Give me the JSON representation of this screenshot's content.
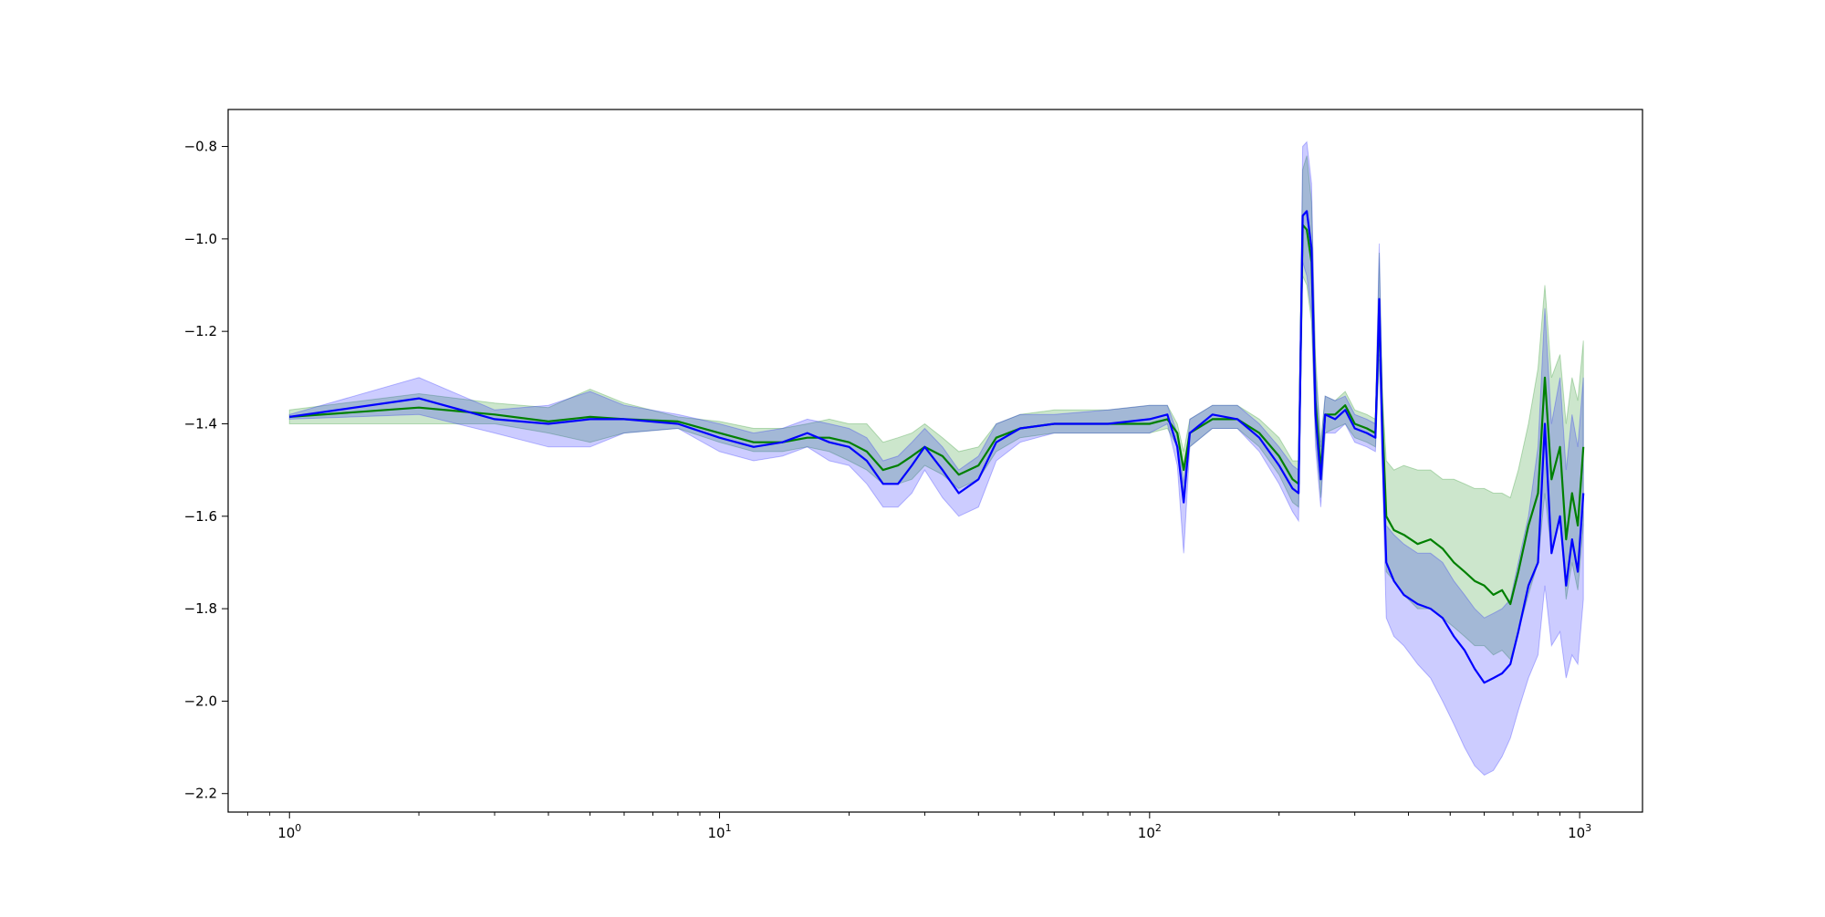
{
  "chart_data": {
    "type": "line",
    "title": "",
    "xlabel": "",
    "ylabel": "",
    "xscale": "log",
    "xlim": [
      0.72,
      1400
    ],
    "ylim": [
      -2.24,
      -0.72
    ],
    "grid": false,
    "legend": "none",
    "x_ticks": [
      {
        "value": 1,
        "base": "10",
        "exp": "0"
      },
      {
        "value": 10,
        "base": "10",
        "exp": "1"
      },
      {
        "value": 100,
        "base": "10",
        "exp": "2"
      },
      {
        "value": 1000,
        "base": "10",
        "exp": "3"
      }
    ],
    "y_ticks": [
      {
        "value": -0.8,
        "label": "−0.8"
      },
      {
        "value": -1.0,
        "label": "−1.0"
      },
      {
        "value": -1.2,
        "label": "−1.2"
      },
      {
        "value": -1.4,
        "label": "−1.4"
      },
      {
        "value": -1.6,
        "label": "−1.6"
      },
      {
        "value": -1.8,
        "label": "−1.8"
      },
      {
        "value": -2.0,
        "label": "−2.0"
      },
      {
        "value": -2.2,
        "label": "−2.2"
      }
    ],
    "series": [
      {
        "color": "#008000",
        "band_color": "#008000",
        "band_opacity": 0.2,
        "points": [
          [
            1,
            -1.385,
            -1.37,
            -1.4
          ],
          [
            2,
            -1.365,
            -1.335,
            -1.4
          ],
          [
            3,
            -1.38,
            -1.355,
            -1.4
          ],
          [
            4,
            -1.395,
            -1.365,
            -1.42
          ],
          [
            5,
            -1.385,
            -1.325,
            -1.44
          ],
          [
            6,
            -1.39,
            -1.355,
            -1.42
          ],
          [
            8,
            -1.395,
            -1.385,
            -1.41
          ],
          [
            10,
            -1.42,
            -1.395,
            -1.44
          ],
          [
            12,
            -1.44,
            -1.41,
            -1.46
          ],
          [
            14,
            -1.44,
            -1.41,
            -1.46
          ],
          [
            16,
            -1.43,
            -1.4,
            -1.45
          ],
          [
            18,
            -1.43,
            -1.39,
            -1.46
          ],
          [
            20,
            -1.44,
            -1.4,
            -1.48
          ],
          [
            22,
            -1.46,
            -1.4,
            -1.5
          ],
          [
            24,
            -1.5,
            -1.44,
            -1.53
          ],
          [
            26,
            -1.49,
            -1.43,
            -1.53
          ],
          [
            28,
            -1.47,
            -1.42,
            -1.52
          ],
          [
            30,
            -1.45,
            -1.4,
            -1.49
          ],
          [
            33,
            -1.47,
            -1.43,
            -1.51
          ],
          [
            36,
            -1.51,
            -1.46,
            -1.54
          ],
          [
            40,
            -1.49,
            -1.45,
            -1.52
          ],
          [
            44,
            -1.43,
            -1.4,
            -1.46
          ],
          [
            50,
            -1.41,
            -1.38,
            -1.43
          ],
          [
            60,
            -1.4,
            -1.37,
            -1.42
          ],
          [
            80,
            -1.4,
            -1.37,
            -1.42
          ],
          [
            100,
            -1.4,
            -1.36,
            -1.42
          ],
          [
            110,
            -1.39,
            -1.36,
            -1.41
          ],
          [
            116,
            -1.42,
            -1.4,
            -1.45
          ],
          [
            120,
            -1.5,
            -1.46,
            -1.55
          ],
          [
            124,
            -1.42,
            -1.39,
            -1.45
          ],
          [
            140,
            -1.39,
            -1.36,
            -1.41
          ],
          [
            160,
            -1.39,
            -1.36,
            -1.41
          ],
          [
            180,
            -1.42,
            -1.39,
            -1.45
          ],
          [
            200,
            -1.47,
            -1.43,
            -1.51
          ],
          [
            215,
            -1.52,
            -1.48,
            -1.57
          ],
          [
            222,
            -1.53,
            -1.48,
            -1.58
          ],
          [
            227,
            -0.97,
            -0.85,
            -1.08
          ],
          [
            232,
            -0.98,
            -0.82,
            -1.1
          ],
          [
            238,
            -1.05,
            -0.92,
            -1.18
          ],
          [
            243,
            -1.35,
            -1.25,
            -1.42
          ],
          [
            250,
            -1.5,
            -1.44,
            -1.56
          ],
          [
            256,
            -1.38,
            -1.34,
            -1.42
          ],
          [
            270,
            -1.38,
            -1.35,
            -1.41
          ],
          [
            285,
            -1.36,
            -1.33,
            -1.4
          ],
          [
            300,
            -1.4,
            -1.37,
            -1.43
          ],
          [
            320,
            -1.41,
            -1.38,
            -1.44
          ],
          [
            335,
            -1.42,
            -1.39,
            -1.45
          ],
          [
            342,
            -1.16,
            -1.03,
            -1.26
          ],
          [
            348,
            -1.4,
            -1.34,
            -1.46
          ],
          [
            355,
            -1.6,
            -1.48,
            -1.72
          ],
          [
            370,
            -1.63,
            -1.5,
            -1.74
          ],
          [
            390,
            -1.64,
            -1.49,
            -1.77
          ],
          [
            420,
            -1.66,
            -1.5,
            -1.8
          ],
          [
            450,
            -1.65,
            -1.5,
            -1.8
          ],
          [
            480,
            -1.67,
            -1.52,
            -1.82
          ],
          [
            510,
            -1.7,
            -1.52,
            -1.84
          ],
          [
            540,
            -1.72,
            -1.53,
            -1.86
          ],
          [
            570,
            -1.74,
            -1.54,
            -1.88
          ],
          [
            600,
            -1.75,
            -1.54,
            -1.88
          ],
          [
            630,
            -1.77,
            -1.55,
            -1.9
          ],
          [
            660,
            -1.76,
            -1.55,
            -1.89
          ],
          [
            690,
            -1.79,
            -1.56,
            -1.91
          ],
          [
            720,
            -1.72,
            -1.5,
            -1.85
          ],
          [
            760,
            -1.62,
            -1.4,
            -1.77
          ],
          [
            800,
            -1.55,
            -1.28,
            -1.7
          ],
          [
            830,
            -1.3,
            -1.1,
            -1.55
          ],
          [
            860,
            -1.52,
            -1.3,
            -1.68
          ],
          [
            900,
            -1.45,
            -1.25,
            -1.6
          ],
          [
            930,
            -1.65,
            -1.4,
            -1.78
          ],
          [
            960,
            -1.55,
            -1.3,
            -1.7
          ],
          [
            990,
            -1.62,
            -1.35,
            -1.76
          ],
          [
            1020,
            -1.45,
            -1.22,
            -1.62
          ]
        ]
      },
      {
        "color": "#0000ff",
        "band_color": "#0000ff",
        "band_opacity": 0.2,
        "points": [
          [
            1,
            -1.385,
            -1.38,
            -1.39
          ],
          [
            2,
            -1.345,
            -1.3,
            -1.38
          ],
          [
            3,
            -1.39,
            -1.37,
            -1.42
          ],
          [
            4,
            -1.4,
            -1.36,
            -1.45
          ],
          [
            5,
            -1.39,
            -1.33,
            -1.45
          ],
          [
            6,
            -1.39,
            -1.36,
            -1.42
          ],
          [
            8,
            -1.4,
            -1.38,
            -1.41
          ],
          [
            10,
            -1.43,
            -1.4,
            -1.46
          ],
          [
            12,
            -1.45,
            -1.42,
            -1.48
          ],
          [
            14,
            -1.44,
            -1.41,
            -1.47
          ],
          [
            16,
            -1.42,
            -1.39,
            -1.45
          ],
          [
            18,
            -1.44,
            -1.4,
            -1.48
          ],
          [
            20,
            -1.45,
            -1.41,
            -1.49
          ],
          [
            22,
            -1.48,
            -1.43,
            -1.53
          ],
          [
            24,
            -1.53,
            -1.48,
            -1.58
          ],
          [
            26,
            -1.53,
            -1.47,
            -1.58
          ],
          [
            28,
            -1.49,
            -1.44,
            -1.55
          ],
          [
            30,
            -1.45,
            -1.41,
            -1.5
          ],
          [
            33,
            -1.5,
            -1.45,
            -1.56
          ],
          [
            36,
            -1.55,
            -1.5,
            -1.6
          ],
          [
            40,
            -1.52,
            -1.47,
            -1.58
          ],
          [
            44,
            -1.44,
            -1.4,
            -1.48
          ],
          [
            50,
            -1.41,
            -1.38,
            -1.44
          ],
          [
            60,
            -1.4,
            -1.38,
            -1.42
          ],
          [
            80,
            -1.4,
            -1.37,
            -1.42
          ],
          [
            100,
            -1.39,
            -1.36,
            -1.42
          ],
          [
            110,
            -1.38,
            -1.36,
            -1.4
          ],
          [
            116,
            -1.45,
            -1.42,
            -1.49
          ],
          [
            120,
            -1.57,
            -1.53,
            -1.68
          ],
          [
            124,
            -1.42,
            -1.39,
            -1.45
          ],
          [
            140,
            -1.38,
            -1.36,
            -1.41
          ],
          [
            160,
            -1.39,
            -1.36,
            -1.41
          ],
          [
            180,
            -1.43,
            -1.4,
            -1.46
          ],
          [
            200,
            -1.49,
            -1.45,
            -1.53
          ],
          [
            215,
            -1.54,
            -1.49,
            -1.59
          ],
          [
            222,
            -1.55,
            -1.5,
            -1.61
          ],
          [
            227,
            -0.95,
            -0.8,
            -1.05
          ],
          [
            232,
            -0.94,
            -0.79,
            -1.08
          ],
          [
            238,
            -1.02,
            -0.88,
            -1.16
          ],
          [
            243,
            -1.38,
            -1.28,
            -1.45
          ],
          [
            250,
            -1.52,
            -1.45,
            -1.58
          ],
          [
            256,
            -1.38,
            -1.34,
            -1.42
          ],
          [
            270,
            -1.39,
            -1.35,
            -1.42
          ],
          [
            285,
            -1.37,
            -1.34,
            -1.4
          ],
          [
            300,
            -1.41,
            -1.38,
            -1.44
          ],
          [
            320,
            -1.42,
            -1.39,
            -1.45
          ],
          [
            335,
            -1.43,
            -1.4,
            -1.46
          ],
          [
            342,
            -1.13,
            -1.01,
            -1.25
          ],
          [
            348,
            -1.45,
            -1.38,
            -1.52
          ],
          [
            355,
            -1.7,
            -1.62,
            -1.82
          ],
          [
            370,
            -1.74,
            -1.64,
            -1.86
          ],
          [
            390,
            -1.77,
            -1.66,
            -1.88
          ],
          [
            420,
            -1.79,
            -1.68,
            -1.92
          ],
          [
            450,
            -1.8,
            -1.68,
            -1.95
          ],
          [
            480,
            -1.82,
            -1.7,
            -2.0
          ],
          [
            510,
            -1.86,
            -1.74,
            -2.05
          ],
          [
            540,
            -1.89,
            -1.77,
            -2.1
          ],
          [
            570,
            -1.93,
            -1.8,
            -2.14
          ],
          [
            600,
            -1.96,
            -1.82,
            -2.16
          ],
          [
            630,
            -1.95,
            -1.81,
            -2.15
          ],
          [
            660,
            -1.94,
            -1.8,
            -2.12
          ],
          [
            690,
            -1.92,
            -1.78,
            -2.08
          ],
          [
            720,
            -1.85,
            -1.7,
            -2.02
          ],
          [
            760,
            -1.75,
            -1.6,
            -1.95
          ],
          [
            800,
            -1.7,
            -1.45,
            -1.9
          ],
          [
            830,
            -1.4,
            -1.15,
            -1.75
          ],
          [
            860,
            -1.68,
            -1.4,
            -1.88
          ],
          [
            900,
            -1.6,
            -1.3,
            -1.85
          ],
          [
            930,
            -1.75,
            -1.5,
            -1.95
          ],
          [
            960,
            -1.65,
            -1.38,
            -1.9
          ],
          [
            990,
            -1.72,
            -1.45,
            -1.92
          ],
          [
            1020,
            -1.55,
            -1.3,
            -1.78
          ]
        ]
      }
    ]
  }
}
